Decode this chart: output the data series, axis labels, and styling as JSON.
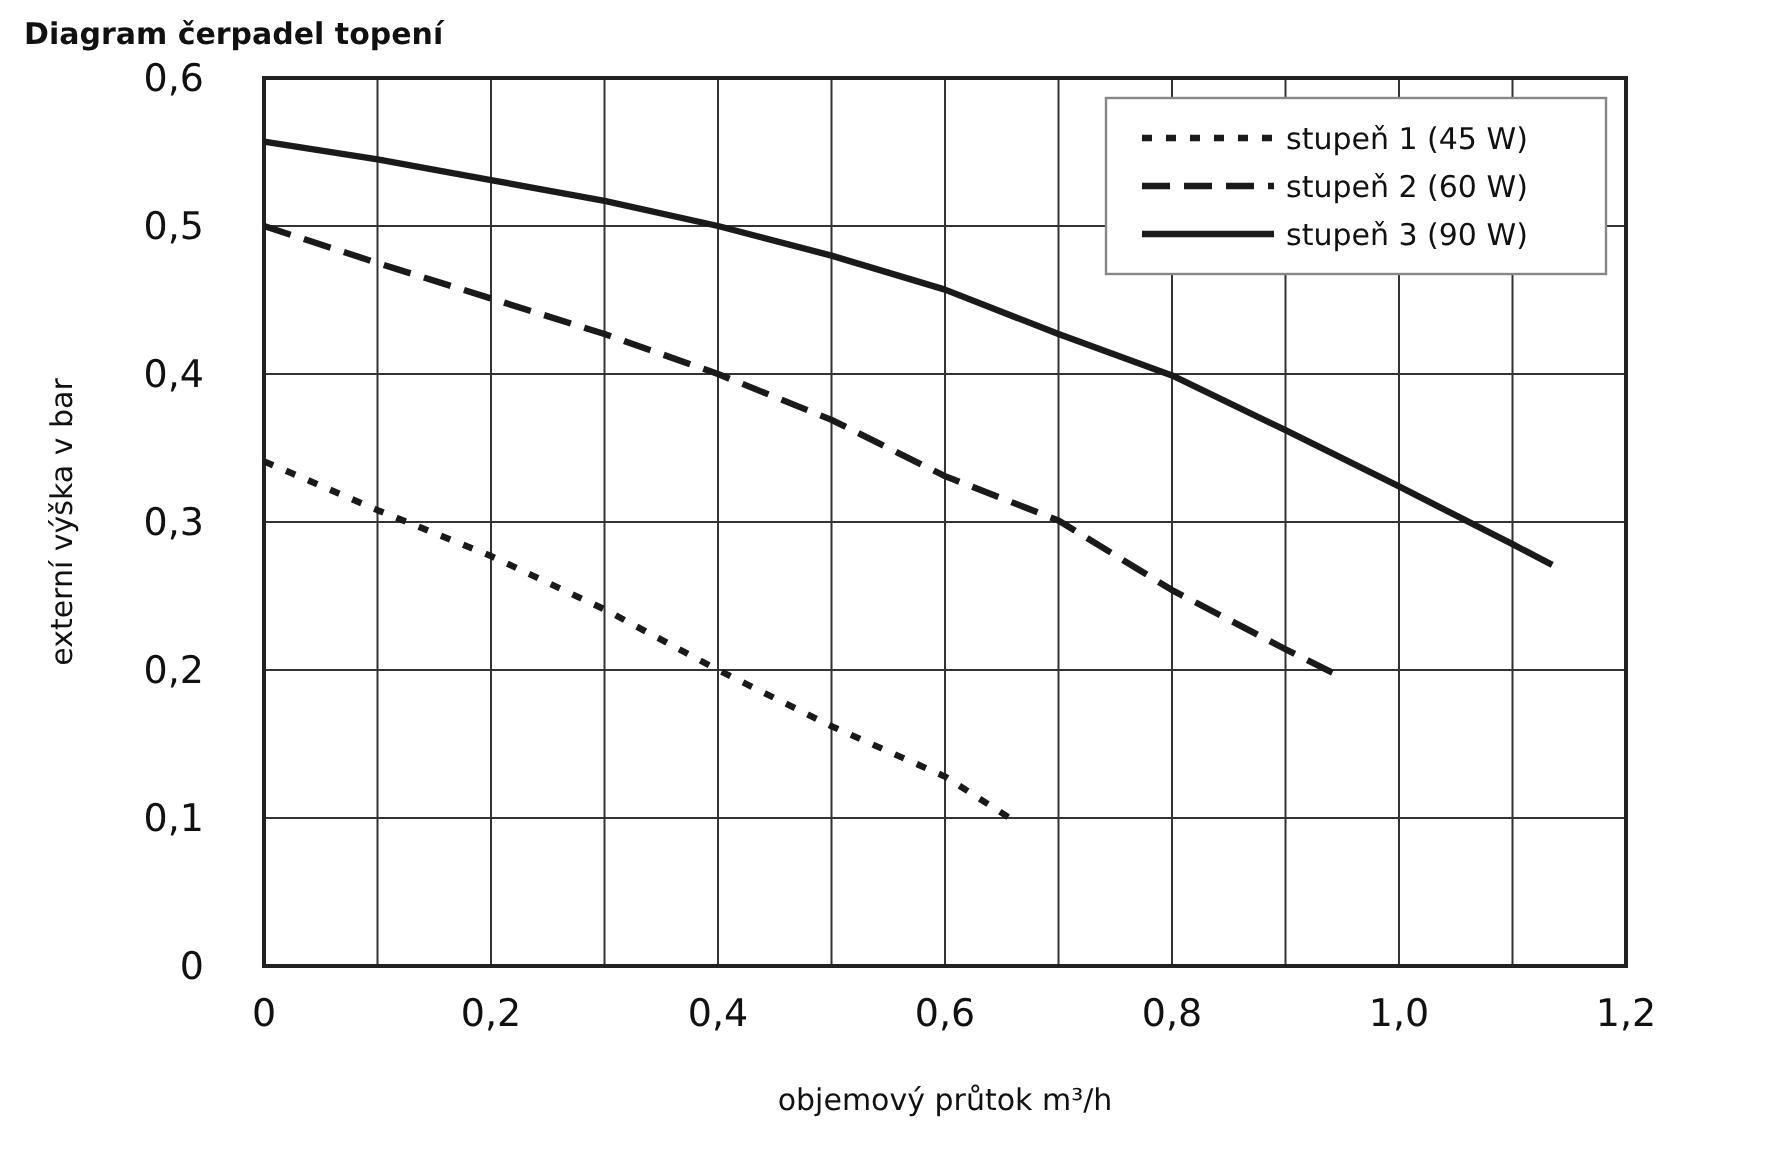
{
  "chart_data": {
    "type": "line",
    "title": "Diagram čerpadel topení",
    "xlabel": "objemový průtok m³/h",
    "ylabel": "externí výška v bar",
    "xlim": [
      0,
      1.2
    ],
    "ylim": [
      0,
      0.6
    ],
    "xticks": [
      {
        "value": 0,
        "label": "0"
      },
      {
        "value": 0.1,
        "label": null
      },
      {
        "value": 0.2,
        "label": "0,2"
      },
      {
        "value": 0.3,
        "label": null
      },
      {
        "value": 0.4,
        "label": "0,4"
      },
      {
        "value": 0.5,
        "label": null
      },
      {
        "value": 0.6,
        "label": "0,6"
      },
      {
        "value": 0.7,
        "label": null
      },
      {
        "value": 0.8,
        "label": "0,8"
      },
      {
        "value": 0.9,
        "label": null
      },
      {
        "value": 1.0,
        "label": "1,0"
      },
      {
        "value": 1.1,
        "label": null
      },
      {
        "value": 1.2,
        "label": "1,2"
      }
    ],
    "yticks": [
      {
        "value": 0,
        "label": "0"
      },
      {
        "value": 0.1,
        "label": "0,1"
      },
      {
        "value": 0.2,
        "label": "0,2"
      },
      {
        "value": 0.3,
        "label": "0,3"
      },
      {
        "value": 0.4,
        "label": "0,4"
      },
      {
        "value": 0.5,
        "label": "0,5"
      },
      {
        "value": 0.6,
        "label": "0,6"
      }
    ],
    "grid": true,
    "legend": "top right",
    "marker": "none",
    "series": [
      {
        "name": "stupeň 1 (45 W)",
        "color": "#1a1a1a",
        "line_style": "dotted",
        "x": [
          0,
          0.1,
          0.2,
          0.3,
          0.4,
          0.5,
          0.6,
          0.657
        ],
        "values": [
          0.341,
          0.308,
          0.277,
          0.241,
          0.2,
          0.162,
          0.128,
          0.1
        ]
      },
      {
        "name": "stupeň 2 (60 W)",
        "color": "#1a1a1a",
        "line_style": "dashed",
        "x": [
          0,
          0.1,
          0.2,
          0.3,
          0.4,
          0.5,
          0.6,
          0.7,
          0.8,
          0.9,
          0.95
        ],
        "values": [
          0.5,
          0.475,
          0.451,
          0.427,
          0.4,
          0.369,
          0.331,
          0.301,
          0.254,
          0.214,
          0.195
        ]
      },
      {
        "name": "stupeň 3 (90 W)",
        "color": "#1a1a1a",
        "line_style": "solid",
        "x": [
          0,
          0.1,
          0.2,
          0.3,
          0.4,
          0.5,
          0.6,
          0.7,
          0.8,
          0.9,
          1.0,
          1.1,
          1.135
        ],
        "values": [
          0.557,
          0.545,
          0.531,
          0.517,
          0.5,
          0.48,
          0.457,
          0.427,
          0.399,
          0.362,
          0.324,
          0.285,
          0.271
        ]
      }
    ]
  }
}
